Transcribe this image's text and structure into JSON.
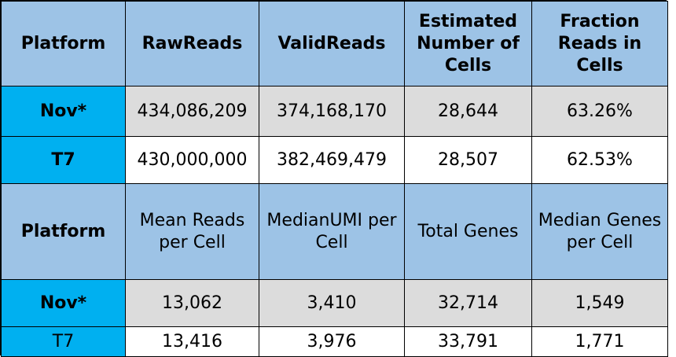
{
  "table1": {
    "headers": [
      "Platform",
      "RawReads",
      "ValidReads",
      "Estimated Number of Cells",
      "Fraction Reads in Cells"
    ],
    "rows": [
      [
        "Nov*",
        "434,086,209",
        "374,168,170",
        "28,644",
        "63.26%"
      ],
      [
        "T7",
        "430,000,000",
        "382,469,479",
        "28,507",
        "62.53%"
      ]
    ]
  },
  "table2": {
    "headers": [
      "Platform",
      "Mean Reads per Cell",
      "MedianUMI per Cell",
      "Total Genes",
      "Median Genes per Cell"
    ],
    "rows": [
      [
        "Nov*",
        "13,062",
        "3,410",
        "32,714",
        "1,549"
      ],
      [
        "T7",
        "13,416",
        "3,976",
        "33,791",
        "1,771"
      ]
    ]
  },
  "colors": {
    "header_bg": "#9dc3e6",
    "platform_bg": "#00b0f0",
    "gray_row_bg": "#dcdcdc",
    "white_row_bg": "#ffffff",
    "border": "#000000"
  }
}
